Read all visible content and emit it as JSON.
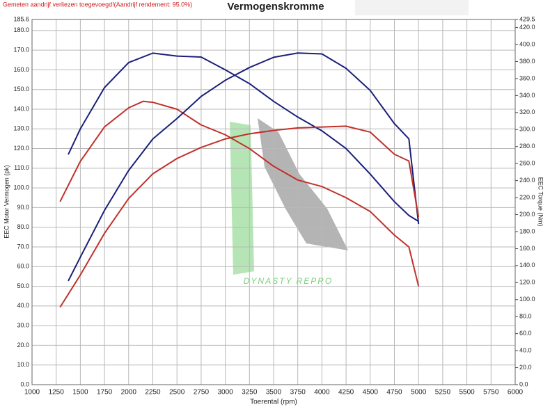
{
  "note": "Gemeten aandrijf verliezen toegevoegd!(Aandrijf rendement: 95.0%)",
  "watermark": "DYNASTY REPRO",
  "chart_data": {
    "type": "line",
    "title": "Vermogenskromme",
    "x_label": "Toerental (rpm)",
    "y_label": "EEC Motor Vermogen (pk)",
    "y2_label": "EEC Torque (Nm)",
    "grid": true,
    "xlim": [
      1000,
      6000
    ],
    "xticks": [
      1000,
      1250,
      1500,
      1750,
      2000,
      2250,
      2500,
      2750,
      3000,
      3250,
      3500,
      3750,
      4000,
      4250,
      4500,
      4750,
      5000,
      5250,
      5500,
      5750,
      6000
    ],
    "ylim": [
      0,
      185.6
    ],
    "yticks": [
      {
        "value": 0,
        "label": "0.0"
      },
      {
        "value": 10,
        "label": "10.0"
      },
      {
        "value": 20,
        "label": "20.0"
      },
      {
        "value": 30,
        "label": "30.0"
      },
      {
        "value": 40,
        "label": "40.0"
      },
      {
        "value": 50,
        "label": "50.0"
      },
      {
        "value": 60,
        "label": "60.0"
      },
      {
        "value": 70,
        "label": "70.0"
      },
      {
        "value": 80,
        "label": "80.0"
      },
      {
        "value": 90,
        "label": "90.0"
      },
      {
        "value": 100,
        "label": "100.0"
      },
      {
        "value": 110,
        "label": "110.0"
      },
      {
        "value": 120,
        "label": "120.0"
      },
      {
        "value": 130,
        "label": "130.0"
      },
      {
        "value": 140,
        "label": "140.0"
      },
      {
        "value": 150,
        "label": "150.0"
      },
      {
        "value": 160,
        "label": "160.0"
      },
      {
        "value": 170,
        "label": "170.0"
      },
      {
        "value": 180,
        "label": "180.0"
      },
      {
        "value": 185.6,
        "label": "185.6"
      }
    ],
    "y2lim": [
      0,
      429.5
    ],
    "y2ticks": [
      {
        "value": 0,
        "label": "0.0"
      },
      {
        "value": 20,
        "label": "20.0"
      },
      {
        "value": 40,
        "label": "40.0"
      },
      {
        "value": 60,
        "label": "60.0"
      },
      {
        "value": 80,
        "label": "80.0"
      },
      {
        "value": 100,
        "label": "100.0"
      },
      {
        "value": 120,
        "label": "120.0"
      },
      {
        "value": 140,
        "label": "140.0"
      },
      {
        "value": 160,
        "label": "160.0"
      },
      {
        "value": 180,
        "label": "180.0"
      },
      {
        "value": 200,
        "label": "200.0"
      },
      {
        "value": 220,
        "label": "220.0"
      },
      {
        "value": 240,
        "label": "240.0"
      },
      {
        "value": 260,
        "label": "260.0"
      },
      {
        "value": 280,
        "label": "280.0"
      },
      {
        "value": 300,
        "label": "300.0"
      },
      {
        "value": 320,
        "label": "320.0"
      },
      {
        "value": 340,
        "label": "340.0"
      },
      {
        "value": 360,
        "label": "360.0"
      },
      {
        "value": 380,
        "label": "380.0"
      },
      {
        "value": 400,
        "label": "400.0"
      },
      {
        "value": 420,
        "label": "420.0"
      },
      {
        "value": 429.5,
        "label": "429.5"
      }
    ],
    "series": [
      {
        "color": "#1a1f7a",
        "axis": "y",
        "x": [
          1375,
          1500,
          1750,
          2000,
          2250,
          2500,
          2750,
          3000,
          3250,
          3500,
          3750,
          4000,
          4250,
          4500,
          4750,
          4900,
          5000
        ],
        "values": [
          117,
          130,
          151,
          163.7,
          168.5,
          167,
          166.5,
          160,
          153,
          144,
          136,
          129,
          120,
          107,
          93,
          86,
          83
        ]
      },
      {
        "color": "#c0302a",
        "axis": "y",
        "x": [
          1290,
          1500,
          1750,
          2000,
          2150,
          2250,
          2500,
          2750,
          3000,
          3250,
          3500,
          3750,
          4000,
          4250,
          4500,
          4750,
          4900,
          5000
        ],
        "values": [
          93,
          113.5,
          131,
          140.7,
          144,
          143.5,
          140,
          132,
          127,
          120,
          111,
          104,
          100.7,
          95,
          88,
          76,
          70,
          50
        ]
      },
      {
        "color": "#1a1f7a",
        "axis": "y2",
        "x": [
          1375,
          1500,
          1750,
          2000,
          2250,
          2500,
          2750,
          3000,
          3250,
          3500,
          3750,
          4000,
          4250,
          4500,
          4750,
          4900,
          5000
        ],
        "values": [
          122,
          150,
          205,
          252,
          289,
          313,
          339,
          358,
          373,
          385,
          390,
          389,
          372,
          346,
          307,
          289,
          189
        ]
      },
      {
        "color": "#c0302a",
        "axis": "y2",
        "x": [
          1290,
          1500,
          1750,
          2000,
          2250,
          2500,
          2750,
          3000,
          3250,
          3500,
          3750,
          4000,
          4250,
          4500,
          4750,
          4900,
          5000
        ],
        "values": [
          91,
          129,
          178,
          219,
          248,
          266,
          279,
          289,
          295,
          299,
          302,
          303,
          304,
          297,
          271,
          263,
          197
        ]
      }
    ]
  }
}
